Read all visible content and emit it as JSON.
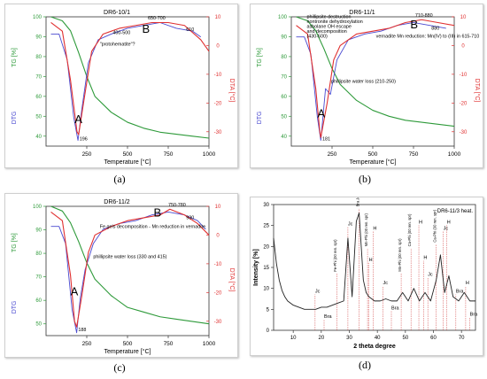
{
  "captions": [
    "(a)",
    "(b)",
    "(c)",
    "(d)"
  ],
  "colors": {
    "tg": "#2e9a3a",
    "dtg": "#4a4ad0",
    "dta": "#e03030",
    "xrd": "#222222",
    "annot": "#000000"
  },
  "chart_data": [
    {
      "type": "line",
      "panel": "a",
      "title": "DR6-10/1",
      "xlabel": "Temperature [°C]",
      "ylabel_left_tg": "TG [%]",
      "ylabel_left_dtg": "DTG",
      "ylabel_right": "DTA [°C]",
      "xlim": [
        0,
        1000
      ],
      "ylim_tg": [
        35,
        100
      ],
      "ylim_dta": [
        -35,
        10
      ],
      "x_ticks": [
        "250",
        "500",
        "750",
        "1000"
      ],
      "tg_ticks": [
        "100",
        "90",
        "80",
        "70",
        "60",
        "50",
        "40"
      ],
      "dta_ticks": [
        "10",
        "0",
        "-10",
        "-20",
        "-30"
      ],
      "series": [
        {
          "name": "TG",
          "x": [
            30,
            100,
            150,
            200,
            250,
            300,
            400,
            500,
            600,
            700,
            800,
            900,
            1000
          ],
          "y": [
            100,
            98,
            93,
            82,
            70,
            60,
            52,
            47,
            44,
            42,
            41,
            40,
            39
          ]
        },
        {
          "name": "DTG",
          "x": [
            30,
            80,
            130,
            170,
            196,
            220,
            260,
            320,
            400,
            500,
            600,
            700,
            800,
            900,
            950
          ],
          "y": [
            4,
            4,
            -5,
            -25,
            -33,
            -22,
            -6,
            2,
            4,
            6,
            7,
            8,
            6,
            5,
            3
          ]
        },
        {
          "name": "DTA",
          "x": [
            30,
            100,
            150,
            190,
            200,
            230,
            280,
            350,
            450,
            550,
            650,
            750,
            850,
            950,
            1000
          ],
          "y": [
            8,
            5,
            -12,
            -30,
            -31,
            -20,
            -2,
            4,
            6,
            7,
            8,
            8,
            7,
            2,
            -2
          ]
        }
      ],
      "annotations": [
        {
          "text": "A",
          "x": 175,
          "y": -27,
          "size": "big"
        },
        {
          "text": "B",
          "x": 590,
          "y": 4.5,
          "size": "big"
        },
        {
          "text": "196",
          "x": 205,
          "y": -33,
          "size": "small"
        },
        {
          "text": "400-500",
          "x": 410,
          "y": 4,
          "size": "small"
        },
        {
          "text": "650-700",
          "x": 625,
          "y": 9,
          "size": "small"
        },
        {
          "text": "\"protohematite\"?",
          "x": 330,
          "y": 0,
          "size": "small"
        },
        {
          "text": "610",
          "x": 860,
          "y": 5,
          "size": "small"
        }
      ]
    },
    {
      "type": "line",
      "panel": "b",
      "title": "DR6-11/1",
      "xlabel": "Temperature [°C]",
      "ylabel_left_tg": "TG [%]",
      "ylabel_left_dtg": "DTG",
      "ylabel_right": "DTA [°C]",
      "xlim": [
        0,
        1000
      ],
      "ylim_tg": [
        35,
        100
      ],
      "ylim_dta": [
        -35,
        10
      ],
      "x_ticks": [
        "250",
        "500",
        "750",
        "1000"
      ],
      "tg_ticks": [
        "100",
        "90",
        "80",
        "70",
        "60",
        "50",
        "40"
      ],
      "dta_ticks": [
        "10",
        "0",
        "-10",
        "-20",
        "-30"
      ],
      "series": [
        {
          "name": "TG",
          "x": [
            30,
            100,
            150,
            200,
            250,
            300,
            400,
            500,
            600,
            700,
            800,
            900,
            1000
          ],
          "y": [
            100,
            98,
            93,
            84,
            74,
            66,
            58,
            53,
            50,
            48,
            47,
            46,
            45
          ]
        },
        {
          "name": "DTG",
          "x": [
            30,
            80,
            120,
            160,
            181,
            210,
            240,
            280,
            350,
            450,
            550,
            650,
            750,
            850,
            950
          ],
          "y": [
            3,
            3,
            -3,
            -25,
            -33,
            -15,
            -17,
            -5,
            2,
            4,
            5,
            7,
            8,
            7,
            6
          ]
        },
        {
          "name": "DTA",
          "x": [
            30,
            100,
            150,
            175,
            181,
            220,
            260,
            300,
            400,
            500,
            600,
            700,
            800,
            900,
            1000
          ],
          "y": [
            7,
            4,
            -15,
            -30,
            -32,
            -20,
            -5,
            0,
            4,
            5,
            6,
            8,
            9,
            8,
            7
          ]
        }
      ],
      "annotations": [
        {
          "text": "A",
          "x": 160,
          "y": -25,
          "size": "big"
        },
        {
          "text": "B",
          "x": 730,
          "y": 6,
          "size": "big"
        },
        {
          "text": "181",
          "x": 190,
          "y": -33,
          "size": "small"
        },
        {
          "text": "710-880",
          "x": 760,
          "y": 10,
          "size": "small"
        },
        {
          "text": "880",
          "x": 860,
          "y": 5.5,
          "size": "small"
        },
        {
          "text": "phillipsite destruction",
          "x": 95,
          "y": 9.5,
          "size": "small"
        },
        {
          "text": "nontronite dehydroxylation",
          "x": 95,
          "y": 7.8,
          "size": "small"
        },
        {
          "text": "asbolane OH escape",
          "x": 95,
          "y": 6.1,
          "size": "small"
        },
        {
          "text": "and decomposition",
          "x": 95,
          "y": 4.4,
          "size": "small"
        },
        {
          "text": "(430-500)",
          "x": 95,
          "y": 2.7,
          "size": "small"
        },
        {
          "text": "vernadite Mn reduction: Mn(IV) to (III) in 615-710",
          "x": 520,
          "y": 2.8,
          "size": "small"
        },
        {
          "text": "phillipsite water loss (210-250)",
          "x": 245,
          "y": -13,
          "size": "small"
        }
      ]
    },
    {
      "type": "line",
      "panel": "c",
      "title": "DR6-11/2",
      "xlabel": "Temperature [°C]",
      "ylabel_left_tg": "TG [%]",
      "ylabel_left_dtg": "DTG",
      "ylabel_right": "DTA [°C]",
      "xlim": [
        0,
        1000
      ],
      "ylim_tg": [
        45,
        100
      ],
      "ylim_dta": [
        -35,
        10
      ],
      "x_ticks": [
        "250",
        "500",
        "750",
        "1000"
      ],
      "tg_ticks": [
        "100",
        "90",
        "80",
        "70",
        "60",
        "50"
      ],
      "dta_ticks": [
        "10",
        "0",
        "-10",
        "-20",
        "-30"
      ],
      "series": [
        {
          "name": "TG",
          "x": [
            30,
            100,
            150,
            200,
            250,
            300,
            400,
            500,
            600,
            700,
            800,
            900,
            1000
          ],
          "y": [
            100,
            98,
            93,
            85,
            76,
            69,
            62,
            57,
            55,
            53,
            52,
            51,
            50
          ]
        },
        {
          "name": "DTG",
          "x": [
            30,
            80,
            120,
            160,
            188,
            210,
            240,
            290,
            350,
            450,
            550,
            650,
            750,
            850,
            930,
            980
          ],
          "y": [
            3,
            3,
            -3,
            -26,
            -34,
            -22,
            -12,
            -3,
            2,
            4,
            5,
            7,
            8,
            7,
            5,
            2
          ]
        },
        {
          "name": "DTA",
          "x": [
            30,
            100,
            150,
            175,
            188,
            220,
            260,
            300,
            400,
            500,
            600,
            700,
            760,
            850,
            930,
            1000
          ],
          "y": [
            8,
            5,
            -14,
            -30,
            -32,
            -21,
            -6,
            0,
            3,
            5,
            6,
            7,
            9,
            7,
            4,
            0
          ]
        }
      ],
      "annotations": [
        {
          "text": "A",
          "x": 150,
          "y": -21,
          "size": "big"
        },
        {
          "text": "B",
          "x": 660,
          "y": 6.5,
          "size": "big"
        },
        {
          "text": "188",
          "x": 198,
          "y": -33.5,
          "size": "small"
        },
        {
          "text": "750-780",
          "x": 750,
          "y": 10,
          "size": "small"
        },
        {
          "text": "930",
          "x": 860,
          "y": 5.5,
          "size": "small"
        },
        {
          "text": "Fe gels decomposition - Mn reduction in vernadite",
          "x": 330,
          "y": 2.5,
          "size": "small"
        },
        {
          "text": "phillipsite water loss (330 and 415)",
          "x": 290,
          "y": -8,
          "size": "small"
        }
      ]
    },
    {
      "type": "line",
      "panel": "d",
      "title": "DR6-11/3 heat.",
      "xlabel": "2 theta degree",
      "ylabel": "Intensity [%]",
      "xlim": [
        3,
        75
      ],
      "ylim": [
        0,
        30
      ],
      "x_ticks": [
        "10",
        "20",
        "30",
        "40",
        "50",
        "60",
        "70"
      ],
      "y_ticks": [
        "0",
        "5",
        "10",
        "15",
        "20",
        "25",
        "30"
      ],
      "series": [
        {
          "name": "XRD",
          "x": [
            3,
            4,
            5,
            6,
            7,
            8,
            10,
            12,
            14,
            16,
            18,
            20,
            22,
            24,
            26,
            28,
            29.5,
            31,
            32.5,
            33.5,
            35,
            36,
            37,
            39,
            41,
            43,
            45,
            47,
            49,
            51,
            53,
            55,
            57,
            59,
            61,
            62.5,
            64,
            65.5,
            67,
            69,
            71,
            73,
            75
          ],
          "y": [
            22,
            16,
            12,
            9.5,
            8,
            7,
            6,
            5.5,
            5,
            5,
            5,
            5.5,
            5.5,
            6,
            6.5,
            7,
            22,
            8,
            26,
            28,
            12,
            9,
            8,
            7,
            7,
            7.5,
            7,
            7,
            9,
            7,
            10,
            7,
            9,
            7,
            12,
            18,
            9,
            13,
            8,
            7,
            9,
            7,
            7
          ]
        }
      ],
      "peak_labels": [
        {
          "text": "Bra",
          "x": 21,
          "y": 3
        },
        {
          "text": "Jc",
          "x": 17.8,
          "y": 9
        },
        {
          "text": "Fe-Phi (00 ren. spr)",
          "x": 25.5,
          "y": 14
        },
        {
          "text": "Jc",
          "x": 29.5,
          "y": 25
        },
        {
          "text": "Bra Jc",
          "x": 33.5,
          "y": 29.5
        },
        {
          "text": "Mn-Phi (00 ren. spr)",
          "x": 36.5,
          "y": 20
        },
        {
          "text": "H",
          "x": 38.5,
          "y": 24
        },
        {
          "text": "H",
          "x": 37,
          "y": 16.5
        },
        {
          "text": "Jc",
          "x": 42,
          "y": 11
        },
        {
          "text": "Bra",
          "x": 45,
          "y": 5
        },
        {
          "text": "Mn-Phi (00 ren. spr)",
          "x": 48.5,
          "y": 14
        },
        {
          "text": "Ca-Phi (00 ren. spr)",
          "x": 52,
          "y": 20
        },
        {
          "text": "H",
          "x": 54.8,
          "y": 25.5
        },
        {
          "text": "H",
          "x": 56.5,
          "y": 17
        },
        {
          "text": "Jc",
          "x": 58,
          "y": 13
        },
        {
          "text": "Ca-Phi (00 ren. spr)",
          "x": 61,
          "y": 21
        },
        {
          "text": "Jc",
          "x": 63.5,
          "y": 24
        },
        {
          "text": "H",
          "x": 64.8,
          "y": 25.5
        },
        {
          "text": "Bra",
          "x": 68,
          "y": 9
        },
        {
          "text": "Bra",
          "x": 73,
          "y": 3.5
        },
        {
          "text": "H",
          "x": 71.5,
          "y": 11
        }
      ]
    }
  ]
}
